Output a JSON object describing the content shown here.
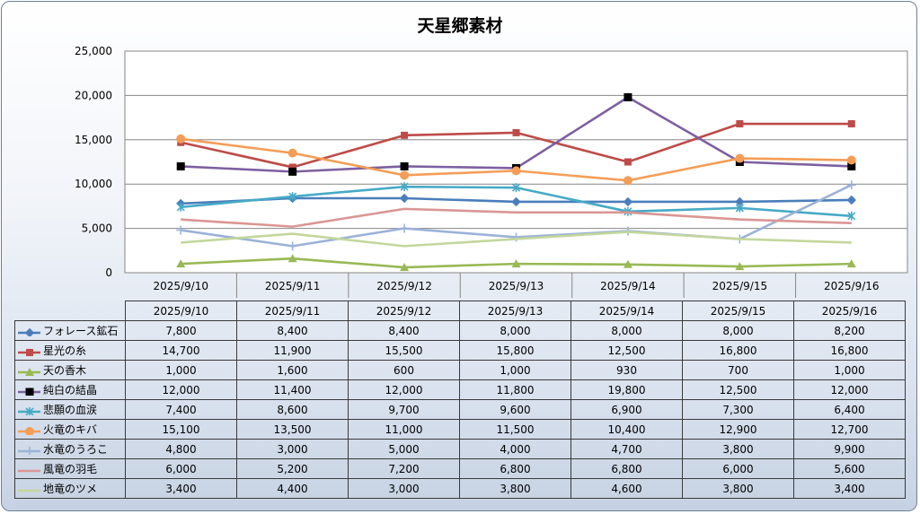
{
  "chart_data": {
    "type": "line",
    "title": "天星郷素材",
    "categories": [
      "2025/9/10",
      "2025/9/11",
      "2025/9/12",
      "2025/9/13",
      "2025/9/14",
      "2025/9/15",
      "2025/9/16"
    ],
    "ylim": [
      0,
      25000
    ],
    "yticks": [
      0,
      5000,
      10000,
      15000,
      20000,
      25000
    ],
    "ytick_labels": [
      "0",
      "5,000",
      "10,000",
      "15,000",
      "20,000",
      "25,000"
    ],
    "grid": true,
    "legend": "data-table",
    "series": [
      {
        "name": "フォレース鉱石",
        "color": "#4a7ebb",
        "marker": "diamond",
        "values": [
          7800,
          8400,
          8400,
          8000,
          8000,
          8000,
          8200
        ],
        "labels": [
          "7,800",
          "8,400",
          "8,400",
          "8,000",
          "8,000",
          "8,000",
          "8,200"
        ]
      },
      {
        "name": "星光の糸",
        "color": "#be4b48",
        "marker": "square",
        "values": [
          14700,
          11900,
          15500,
          15800,
          12500,
          16800,
          16800
        ],
        "labels": [
          "14,700",
          "11,900",
          "15,500",
          "15,800",
          "12,500",
          "16,800",
          "16,800"
        ]
      },
      {
        "name": "天の香木",
        "color": "#98b954",
        "marker": "triangle",
        "values": [
          1000,
          1600,
          600,
          1000,
          930,
          700,
          1000
        ],
        "labels": [
          "1,000",
          "1,600",
          "600",
          "1,000",
          "930",
          "700",
          "1,000"
        ]
      },
      {
        "name": "純白の結晶",
        "color": "#7d60a0",
        "marker": "blacksquare",
        "values": [
          12000,
          11400,
          12000,
          11800,
          19800,
          12500,
          12000
        ],
        "labels": [
          "12,000",
          "11,400",
          "12,000",
          "11,800",
          "19,800",
          "12,500",
          "12,000"
        ]
      },
      {
        "name": "悲願の血涙",
        "color": "#46aac5",
        "marker": "star",
        "values": [
          7400,
          8600,
          9700,
          9600,
          6900,
          7300,
          6400
        ],
        "labels": [
          "7,400",
          "8,600",
          "9,700",
          "9,600",
          "6,900",
          "7,300",
          "6,400"
        ]
      },
      {
        "name": "火竜のキバ",
        "color": "#f59d56",
        "marker": "circle",
        "values": [
          15100,
          13500,
          11000,
          11500,
          10400,
          12900,
          12700
        ],
        "labels": [
          "15,100",
          "13,500",
          "11,000",
          "11,500",
          "10,400",
          "12,900",
          "12,700"
        ]
      },
      {
        "name": "水竜のうろこ",
        "color": "#9bb2d8",
        "marker": "plus",
        "values": [
          4800,
          3000,
          5000,
          4000,
          4700,
          3800,
          9900
        ],
        "labels": [
          "4,800",
          "3,000",
          "5,000",
          "4,000",
          "4,700",
          "3,800",
          "9,900"
        ]
      },
      {
        "name": "風竜の羽毛",
        "color": "#da9694",
        "marker": "none",
        "values": [
          6000,
          5200,
          7200,
          6800,
          6800,
          6000,
          5600
        ],
        "labels": [
          "6,000",
          "5,200",
          "7,200",
          "6,800",
          "6,800",
          "6,000",
          "5,600"
        ]
      },
      {
        "name": "地竜のツメ",
        "color": "#c4d79b",
        "marker": "none",
        "values": [
          3400,
          4400,
          3000,
          3800,
          4600,
          3800,
          3400
        ],
        "labels": [
          "3,400",
          "4,400",
          "3,000",
          "3,800",
          "4,600",
          "3,800",
          "3,400"
        ]
      }
    ]
  }
}
